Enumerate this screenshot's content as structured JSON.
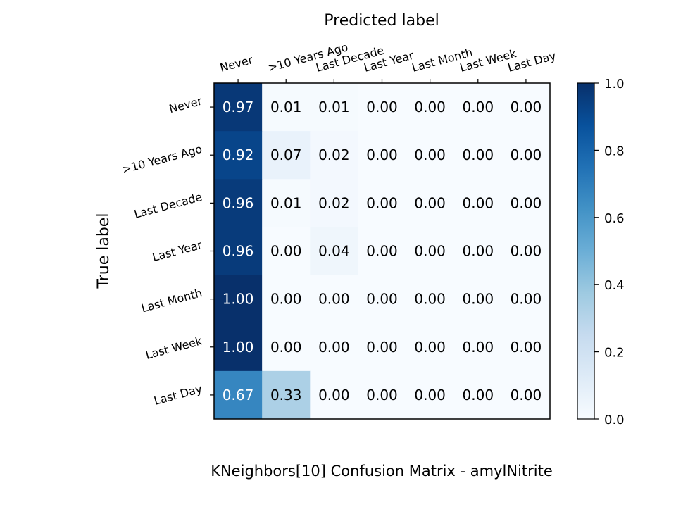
{
  "chart_data": {
    "type": "heatmap",
    "title": "KNeighbors[10]  Confusion Matrix - amylNitrite",
    "xlabel": "Predicted label",
    "ylabel": "True label",
    "x_categories": [
      "Never",
      ">10 Years Ago",
      "Last Decade",
      "Last Year",
      "Last Month",
      "Last Week",
      "Last Day"
    ],
    "y_categories": [
      "Never",
      ">10 Years Ago",
      "Last Decade",
      "Last Year",
      "Last Month",
      "Last Week",
      "Last Day"
    ],
    "values": [
      [
        0.97,
        0.01,
        0.01,
        0.0,
        0.0,
        0.0,
        0.0
      ],
      [
        0.92,
        0.07,
        0.02,
        0.0,
        0.0,
        0.0,
        0.0
      ],
      [
        0.96,
        0.01,
        0.02,
        0.0,
        0.0,
        0.0,
        0.0
      ],
      [
        0.96,
        0.0,
        0.04,
        0.0,
        0.0,
        0.0,
        0.0
      ],
      [
        1.0,
        0.0,
        0.0,
        0.0,
        0.0,
        0.0,
        0.0
      ],
      [
        1.0,
        0.0,
        0.0,
        0.0,
        0.0,
        0.0,
        0.0
      ],
      [
        0.67,
        0.33,
        0.0,
        0.0,
        0.0,
        0.0,
        0.0
      ]
    ],
    "colorbar": {
      "range": [
        0.0,
        1.0
      ],
      "ticks": [
        "0.0",
        "0.2",
        "0.4",
        "0.6",
        "0.8",
        "1.0"
      ]
    },
    "colormap": "Blues",
    "value_format": "2 decimals"
  }
}
